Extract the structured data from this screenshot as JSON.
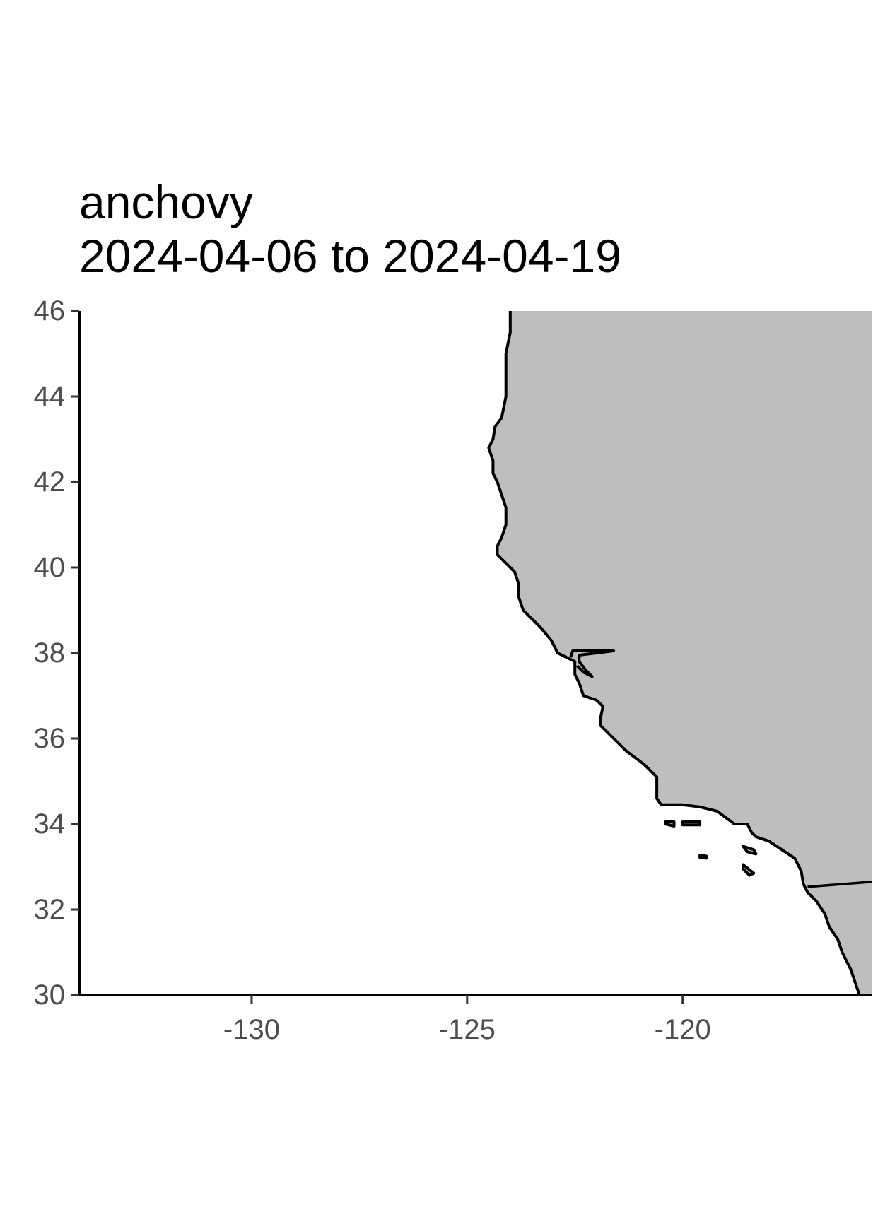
{
  "chart_data": {
    "type": "map",
    "title": "anchovy",
    "subtitle": "2024-04-06 to 2024-04-19",
    "xlabel": "",
    "ylabel": "",
    "xlim": [
      -134,
      -115.6
    ],
    "ylim": [
      30,
      46
    ],
    "x_ticks": [
      -130,
      -125,
      -120
    ],
    "y_ticks": [
      30,
      32,
      34,
      36,
      38,
      40,
      42,
      44,
      46
    ],
    "x_tick_labels": [
      "-130",
      "-125",
      "-120"
    ],
    "y_tick_labels": [
      "30",
      "32",
      "34",
      "36",
      "38",
      "40",
      "42",
      "44",
      "46"
    ],
    "land_color": "#bebebe",
    "ocean_color": "#ffffff",
    "coastline_color": "#000000",
    "grid": false,
    "legend": "none",
    "coastline": [
      [
        -124.0,
        46.0
      ],
      [
        -124.0,
        45.5
      ],
      [
        -124.1,
        45.0
      ],
      [
        -124.1,
        44.5
      ],
      [
        -124.1,
        44.0
      ],
      [
        -124.2,
        43.5
      ],
      [
        -124.35,
        43.3
      ],
      [
        -124.4,
        43.0
      ],
      [
        -124.5,
        42.8
      ],
      [
        -124.4,
        42.5
      ],
      [
        -124.4,
        42.2
      ],
      [
        -124.3,
        42.0
      ],
      [
        -124.2,
        41.7
      ],
      [
        -124.1,
        41.4
      ],
      [
        -124.1,
        41.0
      ],
      [
        -124.2,
        40.7
      ],
      [
        -124.3,
        40.5
      ],
      [
        -124.3,
        40.3
      ],
      [
        -124.1,
        40.1
      ],
      [
        -123.9,
        39.9
      ],
      [
        -123.8,
        39.6
      ],
      [
        -123.8,
        39.3
      ],
      [
        -123.7,
        39.0
      ],
      [
        -123.6,
        38.9
      ],
      [
        -123.3,
        38.6
      ],
      [
        -123.05,
        38.3
      ],
      [
        -122.9,
        38.0
      ],
      [
        -122.7,
        37.9
      ],
      [
        -122.5,
        37.8
      ],
      [
        -122.5,
        37.5
      ],
      [
        -122.4,
        37.3
      ],
      [
        -122.3,
        37.0
      ],
      [
        -122.0,
        36.9
      ],
      [
        -121.85,
        36.75
      ],
      [
        -121.9,
        36.5
      ],
      [
        -121.9,
        36.3
      ],
      [
        -121.6,
        36.0
      ],
      [
        -121.3,
        35.7
      ],
      [
        -120.9,
        35.4
      ],
      [
        -120.6,
        35.1
      ],
      [
        -120.6,
        34.9
      ],
      [
        -120.6,
        34.6
      ],
      [
        -120.5,
        34.45
      ],
      [
        -120.0,
        34.45
      ],
      [
        -119.6,
        34.4
      ],
      [
        -119.2,
        34.3
      ],
      [
        -118.8,
        34.0
      ],
      [
        -118.5,
        34.0
      ],
      [
        -118.4,
        33.8
      ],
      [
        -118.3,
        33.7
      ],
      [
        -118.0,
        33.6
      ],
      [
        -117.7,
        33.4
      ],
      [
        -117.4,
        33.2
      ],
      [
        -117.25,
        32.9
      ],
      [
        -117.2,
        32.6
      ],
      [
        -117.1,
        32.4
      ],
      [
        -116.9,
        32.2
      ],
      [
        -116.7,
        31.9
      ],
      [
        -116.6,
        31.6
      ],
      [
        -116.4,
        31.3
      ],
      [
        -116.3,
        31.0
      ],
      [
        -116.1,
        30.6
      ],
      [
        -116.0,
        30.3
      ],
      [
        -115.9,
        30.0
      ]
    ],
    "sf_bay": [
      [
        -122.6,
        37.9
      ],
      [
        -122.55,
        38.05
      ],
      [
        -122.3,
        38.05
      ],
      [
        -121.9,
        38.05
      ],
      [
        -121.6,
        38.05
      ],
      [
        -122.0,
        38.0
      ],
      [
        -122.4,
        37.95
      ],
      [
        -122.4,
        37.8
      ],
      [
        -122.25,
        37.6
      ],
      [
        -122.1,
        37.45
      ],
      [
        -122.3,
        37.55
      ],
      [
        -122.45,
        37.7
      ]
    ],
    "border": [
      [
        -117.1,
        32.53
      ],
      [
        -115.6,
        32.65
      ]
    ],
    "islands": [
      [
        [
          -120.4,
          34.05
        ],
        [
          -120.2,
          34.05
        ],
        [
          -120.2,
          33.95
        ],
        [
          -120.4,
          34.0
        ]
      ],
      [
        [
          -120.0,
          34.05
        ],
        [
          -119.6,
          34.05
        ],
        [
          -119.6,
          33.98
        ],
        [
          -120.0,
          33.98
        ]
      ],
      [
        [
          -119.6,
          33.27
        ],
        [
          -119.45,
          33.25
        ],
        [
          -119.45,
          33.2
        ],
        [
          -119.6,
          33.22
        ]
      ],
      [
        [
          -118.6,
          33.48
        ],
        [
          -118.35,
          33.4
        ],
        [
          -118.3,
          33.3
        ],
        [
          -118.5,
          33.35
        ]
      ],
      [
        [
          -118.6,
          33.05
        ],
        [
          -118.35,
          32.85
        ],
        [
          -118.45,
          32.8
        ],
        [
          -118.6,
          32.95
        ]
      ]
    ]
  }
}
